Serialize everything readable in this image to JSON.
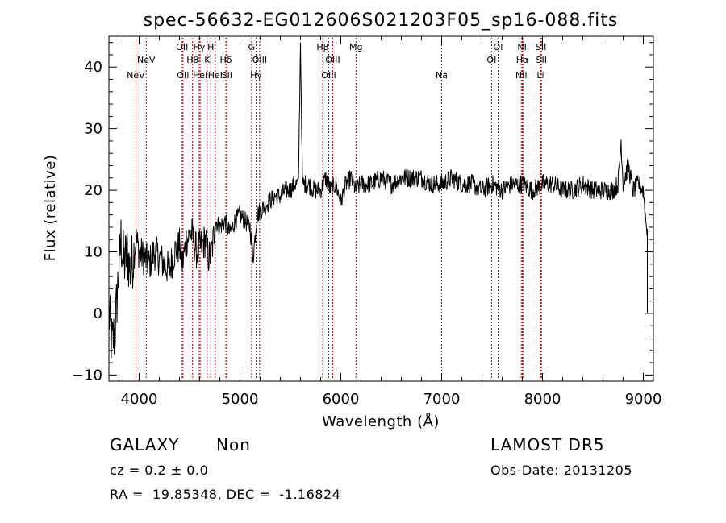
{
  "chart_data": {
    "type": "line",
    "title": "spec-56632-EG012606S021203F05_sp16-088.fits",
    "xlabel": "Wavelength (Å)",
    "ylabel": "Flux (relative)",
    "xlim": [
      3700,
      9100
    ],
    "ylim": [
      -11,
      45
    ],
    "x_ticks": [
      4000,
      5000,
      6000,
      7000,
      8000,
      9000
    ],
    "y_ticks": [
      -10,
      0,
      10,
      20,
      30,
      40
    ],
    "grid": false,
    "line_color": "#000000",
    "marker_color": "#cc0000",
    "spectrum": {
      "x": [
        3700,
        3730,
        3760,
        3790,
        3820,
        3850,
        3880,
        3910,
        3940,
        3970,
        4000,
        4050,
        4100,
        4150,
        4200,
        4250,
        4300,
        4350,
        4400,
        4430,
        4470,
        4520,
        4570,
        4620,
        4660,
        4690,
        4720,
        4760,
        4800,
        4850,
        4900,
        4950,
        5000,
        5050,
        5100,
        5130,
        5170,
        5220,
        5280,
        5340,
        5400,
        5450,
        5500,
        5540,
        5580,
        5600,
        5620,
        5680,
        5740,
        5800,
        5850,
        5900,
        5950,
        6000,
        6050,
        6100,
        6150,
        6200,
        6300,
        6400,
        6500,
        6600,
        6700,
        6800,
        6900,
        7000,
        7100,
        7200,
        7300,
        7400,
        7500,
        7600,
        7700,
        7800,
        7900,
        8000,
        8100,
        8200,
        8300,
        8400,
        8500,
        8600,
        8700,
        8750,
        8780,
        8800,
        8850,
        8900,
        8950,
        9000,
        9030
      ],
      "y": [
        0,
        -5,
        -3,
        5,
        12,
        8,
        10,
        7,
        9,
        12,
        10,
        9,
        8,
        10,
        9,
        8,
        7,
        10,
        11,
        8,
        12,
        13,
        10,
        11,
        12,
        9,
        10,
        15,
        14,
        15,
        13,
        15,
        16,
        15,
        14,
        9,
        16,
        17,
        18,
        19,
        19,
        20,
        20,
        21,
        21,
        44,
        21,
        21,
        20,
        20,
        22,
        20,
        21,
        18,
        21,
        22,
        20,
        21,
        21,
        22,
        21,
        22,
        22,
        22,
        21,
        21,
        22,
        21,
        21,
        20,
        21,
        20,
        21,
        21,
        20,
        21,
        21,
        20,
        20,
        21,
        20,
        20,
        20,
        21,
        28,
        21,
        24,
        20,
        21,
        20,
        14
      ]
    },
    "line_markers": [
      {
        "wavelength": 3967,
        "label": "NeV",
        "row": 3
      },
      {
        "wavelength": 4070,
        "label": "NeV",
        "row": 2
      },
      {
        "wavelength": 4426,
        "label": "OII",
        "row": 1
      },
      {
        "wavelength": 4435,
        "label": "OII",
        "row": 3
      },
      {
        "wavelength": 4530,
        "label": "Hθ",
        "row": 2
      },
      {
        "wavelength": 4595,
        "label": "Hγ",
        "row": 1
      },
      {
        "wavelength": 4605,
        "label": "HeI",
        "row": 3
      },
      {
        "wavelength": 4675,
        "label": "K",
        "row": 2
      },
      {
        "wavelength": 4710,
        "label": "H",
        "row": 1
      },
      {
        "wavelength": 4755,
        "label": "HeI",
        "row": 3
      },
      {
        "wavelength": 4860,
        "label": "Hδ",
        "row": 2
      },
      {
        "wavelength": 4870,
        "label": "SII",
        "row": 3
      },
      {
        "wavelength": 5115,
        "label": "G",
        "row": 1
      },
      {
        "wavelength": 5195,
        "label": "OIII",
        "row": 2
      },
      {
        "wavelength": 5160,
        "label": "Hγ",
        "row": 3
      },
      {
        "wavelength": 5820,
        "label": "Hβ",
        "row": 1
      },
      {
        "wavelength": 5920,
        "label": "OIII",
        "row": 2
      },
      {
        "wavelength": 5880,
        "label": "OIII",
        "row": 3
      },
      {
        "wavelength": 6150,
        "label": "Mg",
        "row": 1
      },
      {
        "wavelength": 7000,
        "label": "Na",
        "row": 3
      },
      {
        "wavelength": 7495,
        "label": "OI",
        "row": 2
      },
      {
        "wavelength": 7560,
        "label": "OI",
        "row": 1
      },
      {
        "wavelength": 7810,
        "label": "NII",
        "row": 1
      },
      {
        "wavelength": 7800,
        "label": "Hα",
        "row": 2
      },
      {
        "wavelength": 7790,
        "label": "NII",
        "row": 3
      },
      {
        "wavelength": 7985,
        "label": "SII",
        "row": 1
      },
      {
        "wavelength": 7990,
        "label": "SII",
        "row": 2
      },
      {
        "wavelength": 7980,
        "label": "Li",
        "row": 3
      }
    ]
  },
  "footer": {
    "class_label": "GALAXY",
    "subclass_label": "Non",
    "survey_label": "LAMOST DR5",
    "redshift": "cz = 0.2 ± 0.0",
    "obs_date": "Obs-Date: 20131205",
    "coords": "RA =  19.85348, DEC =  -1.16824"
  }
}
